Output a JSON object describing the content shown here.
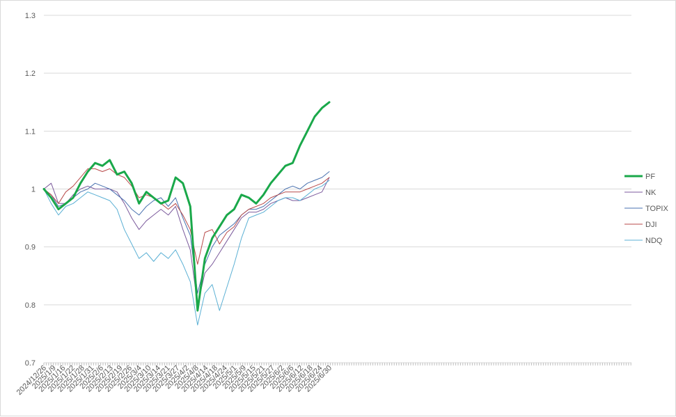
{
  "chart_data": {
    "type": "line",
    "title": "",
    "xlabel": "",
    "ylabel": "",
    "ylim": [
      0.7,
      1.3
    ],
    "yticks": [
      0.7,
      0.8,
      0.9,
      1,
      1.1,
      1.2,
      1.3
    ],
    "grid": "horizontal",
    "legend_position": "right",
    "x_tick_labels": [
      "2024/12/26",
      "2025/1/9",
      "2025/1/16",
      "2025/1/22",
      "2025/1/28",
      "2025/1/31",
      "2025/2/6",
      "2025/2/13",
      "2025/2/19",
      "2025/2/26",
      "2025/3/4",
      "2025/3/10",
      "2025/3/14",
      "2025/3/21",
      "2025/3/27",
      "2025/4/2",
      "2025/4/8",
      "2025/4/14",
      "2025/4/18",
      "2025/4/24",
      "2025/5/1",
      "2025/5/9",
      "2025/5/15",
      "2025/5/21",
      "2025/5/27",
      "2025/6/2",
      "2025/6/6",
      "2025/6/12",
      "2025/6/18",
      "2025/6/24",
      "2025/6/30"
    ],
    "series": [
      {
        "name": "PF",
        "color": "#1aa84a",
        "width": 3,
        "values": [
          1.0,
          0.985,
          0.965,
          0.975,
          0.985,
          1.01,
          1.03,
          1.045,
          1.04,
          1.05,
          1.025,
          1.03,
          1.01,
          0.975,
          0.995,
          0.985,
          0.975,
          0.98,
          1.02,
          1.01,
          0.97,
          0.79,
          0.88,
          0.915,
          0.935,
          0.955,
          0.965,
          0.99,
          0.985,
          0.975,
          0.99,
          1.01,
          1.025,
          1.04,
          1.045,
          1.075,
          1.1,
          1.125,
          1.14,
          1.15
        ]
      },
      {
        "name": "NK",
        "color": "#7b5a9c",
        "width": 1,
        "values": [
          1.0,
          1.01,
          0.975,
          0.975,
          0.99,
          1.0,
          1.005,
          1.0,
          1.0,
          1.0,
          0.995,
          0.975,
          0.95,
          0.93,
          0.945,
          0.955,
          0.965,
          0.955,
          0.97,
          0.93,
          0.895,
          0.8,
          0.855,
          0.87,
          0.89,
          0.91,
          0.93,
          0.95,
          0.96,
          0.96,
          0.965,
          0.975,
          0.98,
          0.985,
          0.98,
          0.98,
          0.985,
          0.99,
          0.995,
          1.02
        ]
      },
      {
        "name": "TOPIX",
        "color": "#4a72b0",
        "width": 1,
        "values": [
          1.0,
          0.99,
          0.97,
          0.975,
          0.985,
          0.995,
          1.0,
          1.01,
          1.005,
          1.0,
          0.99,
          0.98,
          0.965,
          0.955,
          0.97,
          0.98,
          0.985,
          0.97,
          0.985,
          0.95,
          0.92,
          0.82,
          0.87,
          0.9,
          0.92,
          0.93,
          0.94,
          0.955,
          0.965,
          0.965,
          0.97,
          0.98,
          0.99,
          1.0,
          1.005,
          1.0,
          1.01,
          1.015,
          1.02,
          1.03
        ]
      },
      {
        "name": "DJI",
        "color": "#b84a4a",
        "width": 1,
        "values": [
          1.0,
          0.99,
          0.975,
          0.995,
          1.005,
          1.02,
          1.035,
          1.035,
          1.03,
          1.035,
          1.025,
          1.02,
          1.005,
          0.985,
          0.99,
          0.985,
          0.975,
          0.965,
          0.975,
          0.955,
          0.93,
          0.87,
          0.925,
          0.93,
          0.905,
          0.925,
          0.935,
          0.955,
          0.965,
          0.97,
          0.975,
          0.985,
          0.99,
          0.995,
          0.995,
          0.995,
          1.0,
          1.005,
          1.01,
          1.02
        ]
      },
      {
        "name": "NDQ",
        "color": "#5bb0d4",
        "width": 1,
        "values": [
          1.0,
          0.975,
          0.955,
          0.97,
          0.975,
          0.985,
          0.995,
          0.99,
          0.985,
          0.98,
          0.965,
          0.93,
          0.905,
          0.88,
          0.89,
          0.875,
          0.89,
          0.88,
          0.895,
          0.87,
          0.84,
          0.765,
          0.82,
          0.835,
          0.79,
          0.83,
          0.87,
          0.915,
          0.95,
          0.955,
          0.96,
          0.97,
          0.98,
          0.985,
          0.985,
          0.98,
          0.99,
          1.0,
          1.005,
          1.015
        ]
      }
    ]
  }
}
